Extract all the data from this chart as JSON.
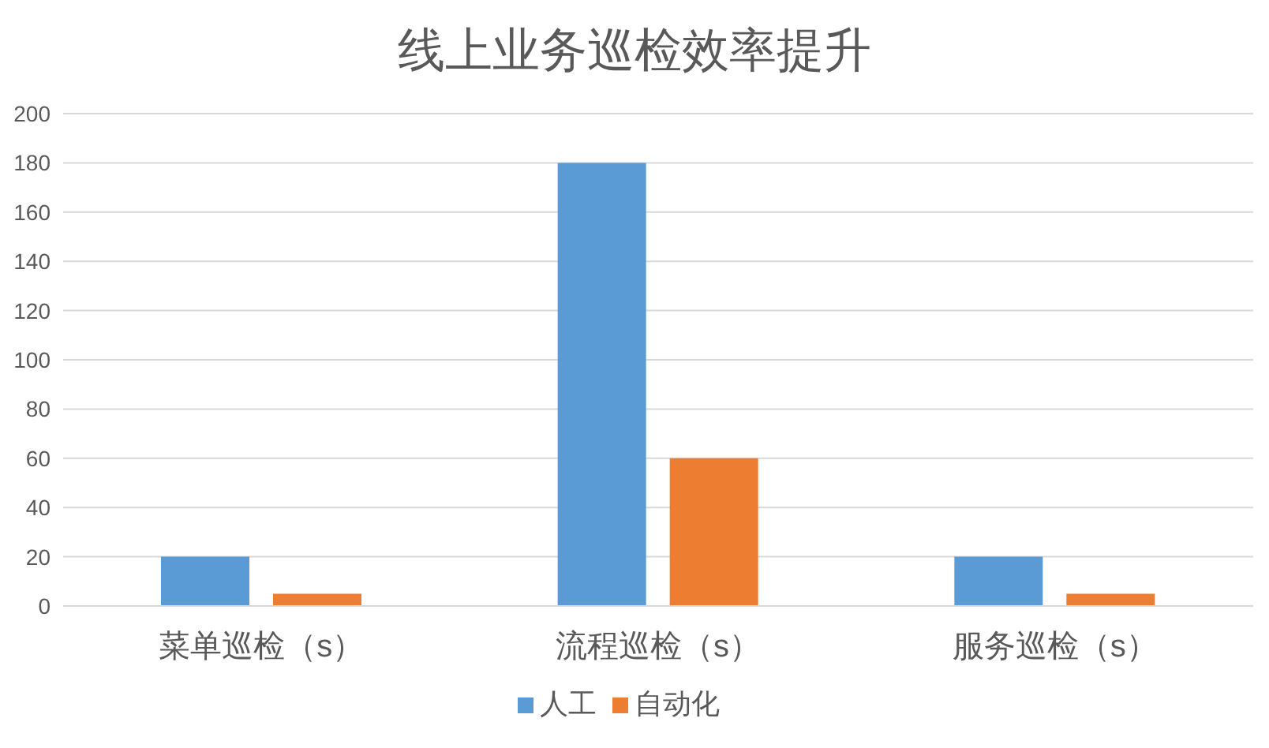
{
  "chart_data": {
    "type": "bar",
    "title": "线上业务巡检效率提升",
    "categories": [
      "菜单巡检（s）",
      "流程巡检（s）",
      "服务巡检（s）"
    ],
    "series": [
      {
        "name": "人工",
        "color": "#5b9bd5",
        "values": [
          20,
          180,
          20
        ]
      },
      {
        "name": "自动化",
        "color": "#ed7d31",
        "values": [
          5,
          60,
          5
        ]
      }
    ],
    "ylim": [
      0,
      200
    ],
    "yticks": [
      0,
      20,
      40,
      60,
      80,
      100,
      120,
      140,
      160,
      180,
      200
    ],
    "grid": "y",
    "legend": "bottom"
  }
}
